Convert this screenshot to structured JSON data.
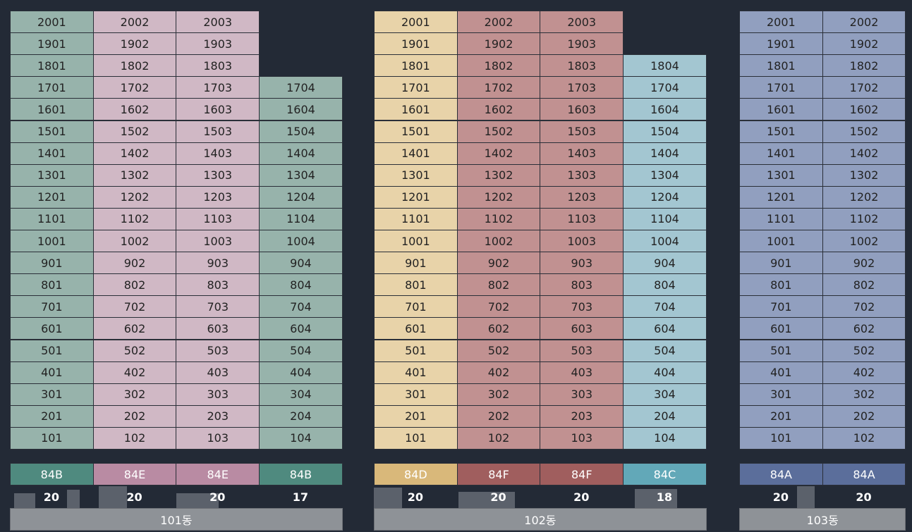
{
  "buildings": [
    {
      "name": "101동",
      "lines": [
        {
          "type": "84B",
          "count": 20,
          "color": "#97b3ab",
          "type_color": "#4f8a7f",
          "units": [
            "2001",
            "1901",
            "1801",
            "1701",
            "1601",
            "1501",
            "1401",
            "1301",
            "1201",
            "1101",
            "1001",
            "901",
            "801",
            "701",
            "601",
            "501",
            "401",
            "301",
            "201",
            "101"
          ]
        },
        {
          "type": "84E",
          "count": 20,
          "color": "#d0b8c5",
          "type_color": "#b98ba3",
          "units": [
            "2002",
            "1902",
            "1802",
            "1702",
            "1602",
            "1502",
            "1402",
            "1302",
            "1202",
            "1102",
            "1002",
            "902",
            "802",
            "702",
            "602",
            "502",
            "402",
            "302",
            "202",
            "102"
          ]
        },
        {
          "type": "84E",
          "count": 20,
          "color": "#d0b8c5",
          "type_color": "#b98ba3",
          "units": [
            "2003",
            "1903",
            "1803",
            "1703",
            "1603",
            "1503",
            "1403",
            "1303",
            "1203",
            "1103",
            "1003",
            "903",
            "803",
            "703",
            "603",
            "503",
            "403",
            "303",
            "203",
            "103"
          ]
        },
        {
          "type": "84B",
          "count": 17,
          "color": "#97b3ab",
          "type_color": "#4f8a7f",
          "units": [
            "1704",
            "1604",
            "1504",
            "1404",
            "1304",
            "1204",
            "1104",
            "1004",
            "904",
            "804",
            "704",
            "604",
            "504",
            "404",
            "304",
            "204",
            "104"
          ]
        }
      ]
    },
    {
      "name": "102동",
      "lines": [
        {
          "type": "84D",
          "count": 20,
          "color": "#e8d3a9",
          "type_color": "#d9b87a",
          "units": [
            "2001",
            "1901",
            "1801",
            "1701",
            "1601",
            "1501",
            "1401",
            "1301",
            "1201",
            "1101",
            "1001",
            "901",
            "801",
            "701",
            "601",
            "501",
            "401",
            "301",
            "201",
            "101"
          ]
        },
        {
          "type": "84F",
          "count": 20,
          "color": "#c19191",
          "type_color": "#a05e5e",
          "units": [
            "2002",
            "1902",
            "1802",
            "1702",
            "1602",
            "1502",
            "1402",
            "1302",
            "1202",
            "1102",
            "1002",
            "902",
            "802",
            "702",
            "602",
            "502",
            "402",
            "302",
            "202",
            "102"
          ]
        },
        {
          "type": "84F",
          "count": 20,
          "color": "#c19191",
          "type_color": "#a05e5e",
          "units": [
            "2003",
            "1903",
            "1803",
            "1703",
            "1603",
            "1503",
            "1403",
            "1303",
            "1203",
            "1103",
            "1003",
            "903",
            "803",
            "703",
            "603",
            "503",
            "403",
            "303",
            "203",
            "103"
          ]
        },
        {
          "type": "84C",
          "count": 18,
          "color": "#a3c6d1",
          "type_color": "#62a8b8",
          "units": [
            "1804",
            "1704",
            "1604",
            "1504",
            "1404",
            "1304",
            "1204",
            "1104",
            "1004",
            "904",
            "804",
            "704",
            "604",
            "504",
            "404",
            "304",
            "204",
            "104"
          ]
        }
      ]
    },
    {
      "name": "103동",
      "lines": [
        {
          "type": "84A",
          "count": 20,
          "color": "#919fbf",
          "type_color": "#5b6e9b",
          "units": [
            "2001",
            "1901",
            "1801",
            "1701",
            "1601",
            "1501",
            "1401",
            "1301",
            "1201",
            "1101",
            "1001",
            "901",
            "801",
            "701",
            "601",
            "501",
            "401",
            "301",
            "201",
            "101"
          ]
        },
        {
          "type": "84A",
          "count": 20,
          "color": "#919fbf",
          "type_color": "#5b6e9b",
          "units": [
            "2002",
            "1902",
            "1802",
            "1702",
            "1602",
            "1502",
            "1402",
            "1302",
            "1202",
            "1102",
            "1002",
            "902",
            "802",
            "702",
            "602",
            "502",
            "402",
            "302",
            "202",
            "102"
          ]
        }
      ]
    }
  ]
}
